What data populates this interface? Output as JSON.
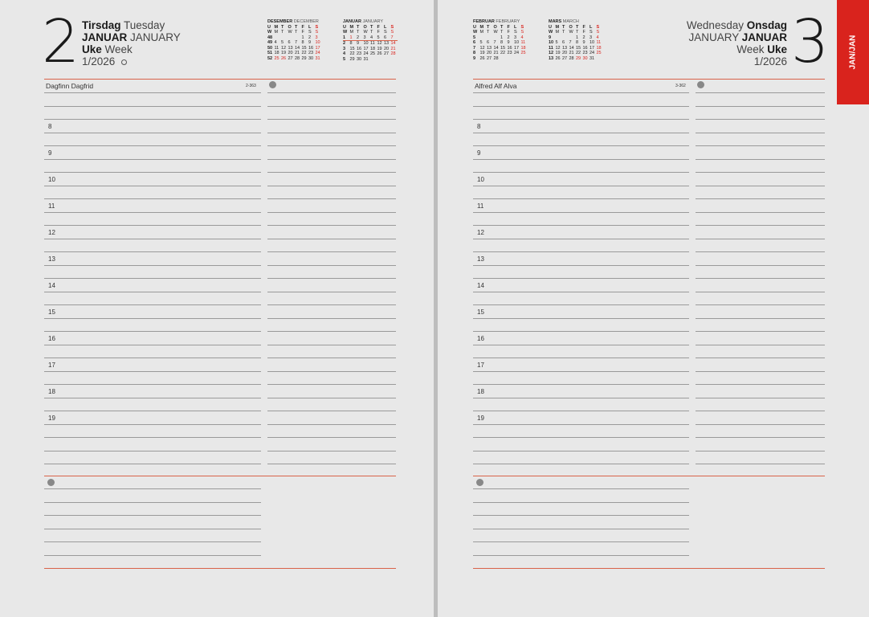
{
  "left": {
    "day_number": "2",
    "weekday_no": "Tirsdag",
    "weekday_en": "Tuesday",
    "month_no": "JANUAR",
    "month_en": "JANUARY",
    "week_no": "Uke",
    "week_en": "Week",
    "week_year": "1/2026",
    "moon_icon": "moon-phase-icon",
    "names": "Dagfinn Dagfrid",
    "day_count": "2-363"
  },
  "right": {
    "day_number": "3",
    "weekday_en": "Wednesday",
    "weekday_no": "Onsdag",
    "month_en": "JANUARY",
    "month_no": "JANUAR",
    "week_en": "Week",
    "week_no": "Uke",
    "week_year": "1/2026",
    "names": "Alfred Alf Alva",
    "day_count": "3-362"
  },
  "hours": [
    "8",
    "9",
    "10",
    "11",
    "12",
    "13",
    "14",
    "15",
    "16",
    "17",
    "18",
    "19"
  ],
  "tab_label": "JAN/JAN",
  "colors": {
    "accent": "#d9231d",
    "rule": "#d9634a"
  },
  "calendars": [
    {
      "title_no": "DESEMBER",
      "title_en": "DECEMBER",
      "head_no": [
        "U",
        "M",
        "T",
        "O",
        "T",
        "F",
        "L",
        "S"
      ],
      "head_en": [
        "W",
        "M",
        "T",
        "W",
        "T",
        "F",
        "S",
        "S"
      ],
      "weeks": [
        [
          "48",
          "",
          "",
          "",
          "",
          "1",
          "2",
          "3"
        ],
        [
          "49",
          "4",
          "5",
          "6",
          "7",
          "8",
          "9",
          "10"
        ],
        [
          "50",
          "11",
          "12",
          "13",
          "14",
          "15",
          "16",
          "17"
        ],
        [
          "51",
          "18",
          "19",
          "20",
          "21",
          "22",
          "23",
          "24"
        ],
        [
          "52",
          "25",
          "26",
          "27",
          "28",
          "29",
          "30",
          "31"
        ]
      ],
      "red": [
        "3",
        "10",
        "17",
        "24",
        "25",
        "26",
        "31"
      ]
    },
    {
      "title_no": "JANUAR",
      "title_en": "JANUARY",
      "head_no": [
        "U",
        "M",
        "T",
        "O",
        "T",
        "F",
        "L",
        "S"
      ],
      "head_en": [
        "W",
        "M",
        "T",
        "W",
        "T",
        "F",
        "S",
        "S"
      ],
      "weeks": [
        [
          "1",
          "1",
          "2",
          "3",
          "4",
          "5",
          "6",
          "7"
        ],
        [
          "2",
          "8",
          "9",
          "10",
          "11",
          "12",
          "13",
          "14"
        ],
        [
          "3",
          "15",
          "16",
          "17",
          "18",
          "19",
          "20",
          "21"
        ],
        [
          "4",
          "22",
          "23",
          "24",
          "25",
          "26",
          "27",
          "28"
        ],
        [
          "5",
          "29",
          "30",
          "31",
          "",
          "",
          "",
          ""
        ]
      ],
      "red": [
        "1",
        "7",
        "14",
        "21",
        "28"
      ],
      "current_week": "1"
    },
    {
      "title_no": "FEBRUAR",
      "title_en": "FEBRUARY",
      "head_no": [
        "U",
        "M",
        "T",
        "O",
        "T",
        "F",
        "L",
        "S"
      ],
      "head_en": [
        "W",
        "M",
        "T",
        "W",
        "T",
        "F",
        "S",
        "S"
      ],
      "weeks": [
        [
          "5",
          "",
          "",
          "",
          "1",
          "2",
          "3",
          "4"
        ],
        [
          "6",
          "5",
          "6",
          "7",
          "8",
          "9",
          "10",
          "11"
        ],
        [
          "7",
          "12",
          "13",
          "14",
          "15",
          "16",
          "17",
          "18"
        ],
        [
          "8",
          "19",
          "20",
          "21",
          "22",
          "23",
          "24",
          "25"
        ],
        [
          "9",
          "26",
          "27",
          "28",
          "",
          "",
          "",
          ""
        ]
      ],
      "red": [
        "4",
        "11",
        "18",
        "25"
      ]
    },
    {
      "title_no": "MARS",
      "title_en": "MARCH",
      "head_no": [
        "U",
        "M",
        "T",
        "O",
        "T",
        "F",
        "L",
        "S"
      ],
      "head_en": [
        "W",
        "M",
        "T",
        "W",
        "T",
        "F",
        "S",
        "S"
      ],
      "weeks": [
        [
          "9",
          "",
          "",
          "",
          "1",
          "2",
          "3",
          "4"
        ],
        [
          "10",
          "5",
          "6",
          "7",
          "8",
          "9",
          "10",
          "11"
        ],
        [
          "11",
          "12",
          "13",
          "14",
          "15",
          "16",
          "17",
          "18"
        ],
        [
          "12",
          "19",
          "20",
          "21",
          "22",
          "23",
          "24",
          "25"
        ],
        [
          "13",
          "26",
          "27",
          "28",
          "29",
          "30",
          "31",
          ""
        ]
      ],
      "red": [
        "4",
        "11",
        "18",
        "25",
        "29",
        "30"
      ]
    }
  ]
}
